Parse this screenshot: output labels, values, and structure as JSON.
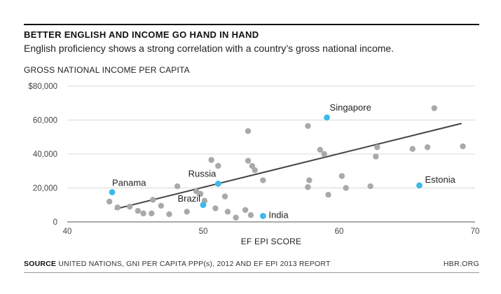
{
  "title": "BETTER ENGLISH AND INCOME GO HAND IN HAND",
  "subtitle": "English proficiency shows a strong correlation with a country’s gross national income.",
  "footer": {
    "source_label": "SOURCE",
    "source_text": "UNITED NATIONS, GNI PER CAPITA PPP(s), 2012 AND EF EPI 2013 REPORT",
    "brand": "HBR.ORG"
  },
  "chart_data": {
    "type": "scatter",
    "title": "BETTER ENGLISH AND INCOME GO HAND IN HAND",
    "xlabel": "EF EPI SCORE",
    "ylabel": "GROSS NATIONAL INCOME PER CAPITA",
    "xlim": [
      40,
      70
    ],
    "ylim": [
      0,
      80000
    ],
    "x_ticks": [
      40,
      50,
      60,
      70
    ],
    "x_tick_labels": [
      "40",
      "50",
      "60",
      "70"
    ],
    "y_ticks": [
      0,
      20000,
      40000,
      60000,
      80000
    ],
    "y_tick_labels": [
      "0",
      "20,000",
      "40,000",
      "60,000",
      "$80,000"
    ],
    "grid": "horizontal",
    "colors": {
      "gray": "#a9a9a9",
      "highlight": "#3db9ea",
      "trend": "#444444",
      "grid": "#d8d8d8"
    },
    "series": [
      {
        "name": "Countries",
        "x": [
          43.1,
          43.7,
          44.6,
          45.2,
          45.6,
          46.2,
          46.3,
          46.9,
          47.5,
          48.1,
          48.8,
          49.5,
          49.8,
          50.1,
          50.6,
          50.9,
          51.1,
          51.6,
          51.8,
          52.4,
          53.1,
          53.3,
          53.5,
          53.8,
          53.6,
          53.3,
          54.4,
          57.7,
          57.8,
          57.7,
          58.6,
          58.9,
          59.2,
          60.2,
          60.5,
          62.3,
          62.7,
          62.8,
          65.4,
          66.5,
          67.0,
          69.1
        ],
        "y": [
          12000,
          8500,
          9000,
          6500,
          5000,
          5000,
          13000,
          9500,
          4500,
          21000,
          6000,
          18000,
          16500,
          12500,
          36500,
          8000,
          33000,
          15000,
          6000,
          2500,
          7000,
          36000,
          4000,
          30500,
          33000,
          53500,
          24500,
          56500,
          24500,
          20500,
          42500,
          40000,
          16000,
          27000,
          20000,
          21000,
          38500,
          44000,
          43000,
          44000,
          67000,
          44500
        ]
      },
      {
        "name": "Highlighted countries",
        "points": [
          {
            "label": "Panama",
            "x": 43.3,
            "y": 17500
          },
          {
            "label": "Brazil",
            "x": 50.0,
            "y": 10000
          },
          {
            "label": "Russia",
            "x": 51.1,
            "y": 22500
          },
          {
            "label": "India",
            "x": 54.4,
            "y": 3500
          },
          {
            "label": "Singapore",
            "x": 59.1,
            "y": 61500
          },
          {
            "label": "Estonia",
            "x": 65.9,
            "y": 21500
          }
        ]
      }
    ],
    "trendline": {
      "x": [
        43.5,
        69.0
      ],
      "y": [
        7500,
        58000
      ]
    }
  }
}
